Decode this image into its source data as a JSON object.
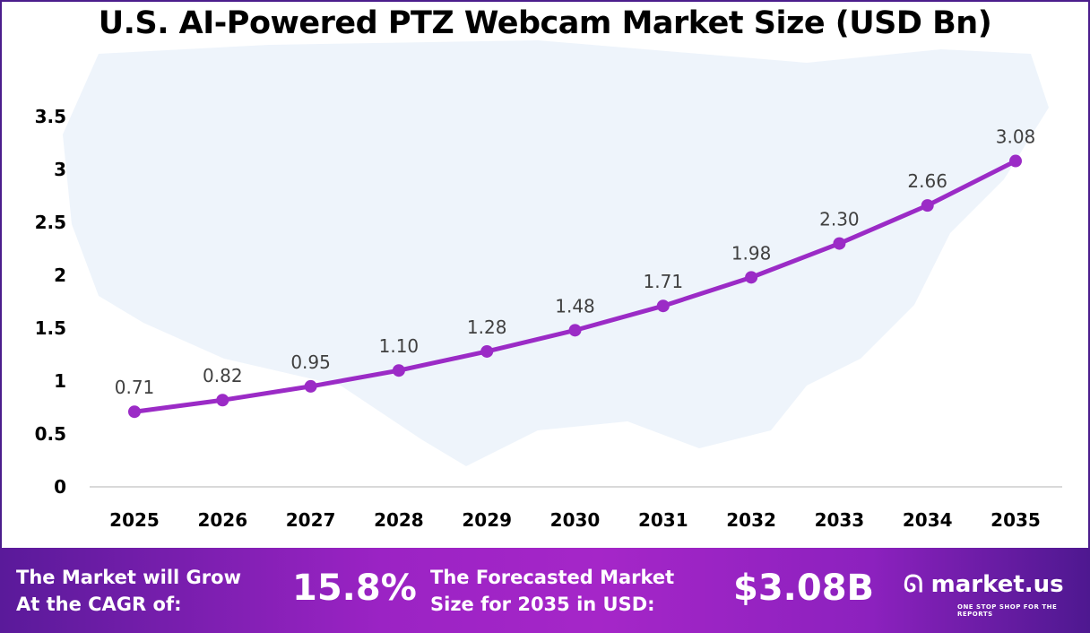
{
  "chart_data": {
    "type": "line",
    "title": "U.S. AI-Powered PTZ Webcam Market Size (USD Bn)",
    "categories": [
      "2025",
      "2026",
      "2027",
      "2028",
      "2029",
      "2030",
      "2031",
      "2032",
      "2033",
      "2034",
      "2035"
    ],
    "values": [
      0.71,
      0.82,
      0.95,
      1.1,
      1.28,
      1.48,
      1.71,
      1.98,
      2.3,
      2.66,
      3.08
    ],
    "data_labels": [
      "0.71",
      "0.82",
      "0.95",
      "1.10",
      "1.28",
      "1.48",
      "1.71",
      "1.98",
      "2.30",
      "2.66",
      "3.08"
    ],
    "yticks": [
      "0",
      "0.5",
      "1",
      "1.5",
      "2",
      "2.5",
      "3",
      "3.5"
    ],
    "ylim": [
      0,
      3.5
    ],
    "grid": false,
    "series_color": "#9b2bc6"
  },
  "banner": {
    "cagr_text_line1": "The Market will Grow",
    "cagr_text_line2": "At the CAGR of:",
    "cagr_value": "15.8%",
    "forecast_text_line1": "The Forecasted Market",
    "forecast_text_line2": "Size for 2035 in USD:",
    "forecast_value": "$3.08B",
    "logo_text": "market.us",
    "logo_tagline": "ONE STOP SHOP FOR THE REPORTS"
  }
}
